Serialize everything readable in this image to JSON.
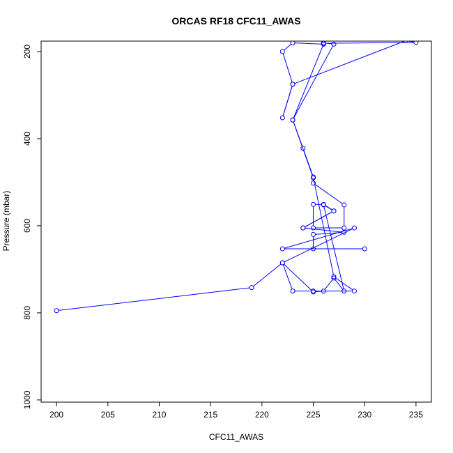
{
  "chart_data": {
    "type": "line",
    "title": "ORCAS RF18 CFC11_AWAS",
    "xlabel": "CFC11_AWAS",
    "ylabel": "Pressure (mbar)",
    "xlim": [
      198.5,
      236.5
    ],
    "ylim": [
      1005,
      176
    ],
    "y_reversed": true,
    "x_ticks": [
      200,
      205,
      210,
      215,
      220,
      225,
      230,
      235
    ],
    "y_ticks": [
      200,
      400,
      600,
      800,
      1000
    ],
    "grid": false,
    "legend": "none",
    "series": [
      {
        "color": "#0000ff",
        "marker": "open-circle",
        "points": [
          [
            200,
            795
          ],
          [
            219,
            742
          ],
          [
            222,
            685
          ],
          [
            229,
            605
          ],
          [
            222,
            653
          ],
          [
            230,
            653
          ],
          [
            225,
            653
          ],
          [
            225,
            620
          ],
          [
            228,
            615
          ],
          [
            224,
            605
          ],
          [
            227,
            566
          ],
          [
            226,
            551
          ],
          [
            225,
            551
          ],
          [
            225,
            605
          ],
          [
            228,
            605
          ],
          [
            228,
            552
          ],
          [
            225,
            502
          ],
          [
            225,
            488
          ],
          [
            224,
            422
          ],
          [
            223,
            357
          ],
          [
            227,
            183
          ],
          [
            226,
            180
          ],
          [
            226,
            181
          ],
          [
            235,
            179
          ],
          [
            234,
            175
          ],
          [
            223,
            275
          ],
          [
            222,
            352
          ],
          [
            223,
            275
          ],
          [
            222,
            200
          ],
          [
            223,
            180
          ],
          [
            226,
            183
          ],
          [
            223,
            357
          ],
          [
            225,
            490
          ],
          [
            227,
            717
          ],
          [
            229,
            750
          ],
          [
            225,
            750
          ],
          [
            223,
            750
          ],
          [
            222,
            685
          ],
          [
            225,
            752
          ],
          [
            226,
            750
          ],
          [
            227,
            720
          ],
          [
            228,
            750
          ],
          [
            226,
            552
          ],
          [
            227,
            566
          ],
          [
            224,
            605
          ]
        ]
      }
    ]
  }
}
